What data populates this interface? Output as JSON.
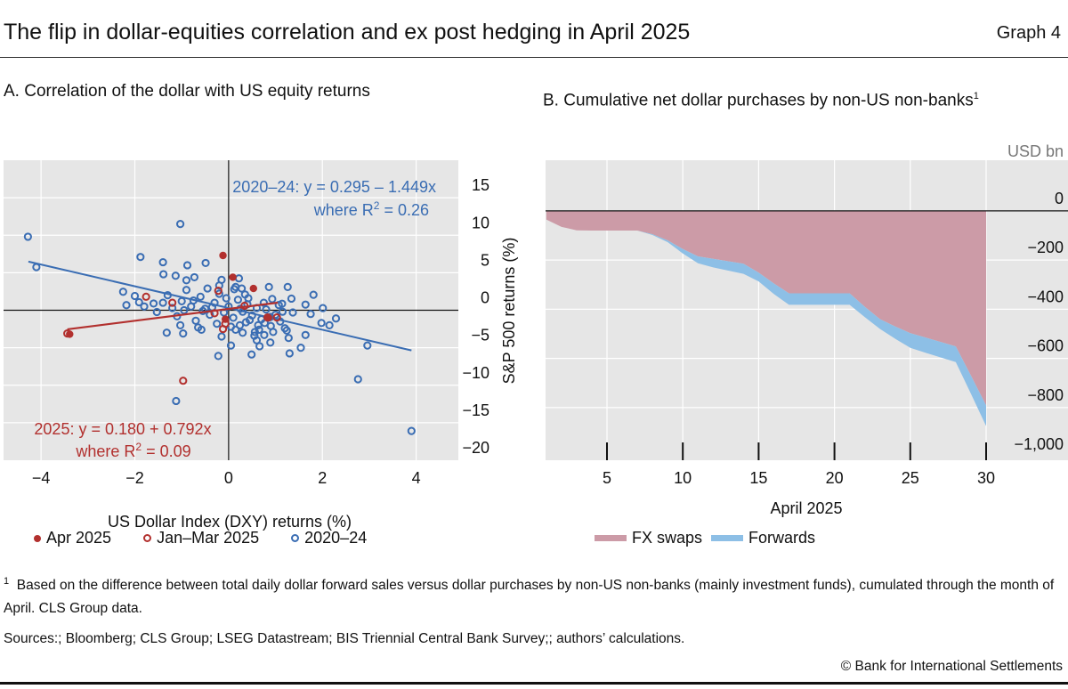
{
  "header": {
    "title": "The flip in dollar-equities correlation and ex post hedging in April 2025",
    "graph_number": "Graph 4"
  },
  "chart_data": [
    {
      "type": "scatter",
      "panel_title": "A. Correlation of the dollar with US equity returns",
      "xlabel": "US Dollar Index (DXY) returns (%)",
      "ylabel": "S&P 500 returns (%)",
      "xlim": [
        -4.8,
        4.9
      ],
      "ylim": [
        -20,
        20
      ],
      "x_ticks": [
        -4,
        -2,
        0,
        2,
        4
      ],
      "x_tick_labels": [
        "−4",
        "−2",
        "0",
        "2",
        "4"
      ],
      "y_ticks": [
        15,
        10,
        5,
        0,
        -5,
        -10,
        -15,
        -20
      ],
      "y_tick_labels": [
        "15",
        "10",
        "5",
        "0",
        "−5",
        "−10",
        "−15",
        "−20"
      ],
      "grid": true,
      "y_axis_side": "right",
      "legend_position": "bottom",
      "colors": {
        "red": "#b2302e",
        "blue": "#3a6db3",
        "background": "#e6e6e6"
      },
      "annotations": {
        "blue_eq": "2020–24: y = 0.295 – 1.449x",
        "blue_r2_prefix": "where R",
        "blue_r2_suffix": " = 0.26",
        "red_eq": "2025: y = 0.180 + 0.792x",
        "red_r2_prefix": "where R",
        "red_r2_suffix": " = 0.09",
        "sup": "2"
      },
      "fits": [
        {
          "series": "2020–24",
          "intercept": 0.295,
          "slope": -1.449,
          "x_range": [
            -4.27,
            3.9
          ]
        },
        {
          "series": "2025",
          "intercept": 0.18,
          "slope": 0.792,
          "x_range": [
            -3.44,
            1.05
          ]
        }
      ],
      "series": [
        {
          "name": "Apr 2025",
          "marker": "filled",
          "color": "#b2302e",
          "points": [
            [
              -0.12,
              7.3
            ],
            [
              0.09,
              4.4
            ],
            [
              0.53,
              2.9
            ],
            [
              -3.39,
              -3.2
            ],
            [
              -0.07,
              -1.2
            ],
            [
              0.85,
              -1.0
            ]
          ]
        },
        {
          "name": "Jan–Mar 2025",
          "marker": "hollow",
          "color": "#b2302e",
          "points": [
            [
              -3.44,
              -3.1
            ],
            [
              -0.97,
              -9.4
            ],
            [
              -0.22,
              2.6
            ],
            [
              -1.76,
              1.8
            ],
            [
              -1.2,
              1.0
            ],
            [
              -0.3,
              -0.4
            ],
            [
              -0.07,
              -1.8
            ],
            [
              -0.12,
              -2.5
            ],
            [
              0.34,
              0.6
            ],
            [
              0.83,
              -0.96
            ],
            [
              1.03,
              -0.96
            ]
          ]
        },
        {
          "name": "2020–24",
          "marker": "hollow",
          "color": "#3a6db3",
          "points": [
            [
              -4.28,
              9.8
            ],
            [
              -4.1,
              5.75
            ],
            [
              -1.03,
              11.5
            ],
            [
              -1.88,
              7.1
            ],
            [
              3.9,
              -16.1
            ],
            [
              2.76,
              -9.2
            ],
            [
              2.96,
              -4.7
            ],
            [
              -1.12,
              -12.1
            ],
            [
              -0.22,
              -6.1
            ],
            [
              -2.25,
              2.46
            ],
            [
              -2.18,
              0.68
            ],
            [
              -1.91,
              1.07
            ],
            [
              -1.53,
              -0.24
            ],
            [
              -1.32,
              -3.0
            ],
            [
              -1.4,
              6.4
            ],
            [
              -1.39,
              4.8
            ],
            [
              -0.88,
              6.0
            ],
            [
              -0.49,
              6.3
            ],
            [
              1.81,
              2.06
            ],
            [
              2.01,
              0.28
            ],
            [
              1.98,
              -1.7
            ],
            [
              2.15,
              -2.0
            ],
            [
              2.29,
              -1.1
            ],
            [
              1.64,
              0.75
            ],
            [
              1.54,
              -5.0
            ],
            [
              1.3,
              -5.75
            ],
            [
              1.26,
              3.1
            ],
            [
              1.34,
              1.55
            ],
            [
              1.24,
              -2.7
            ],
            [
              1.28,
              -3.7
            ],
            [
              1.64,
              -3.3
            ],
            [
              0.86,
              3.1
            ],
            [
              0.66,
              -4.8
            ],
            [
              0.49,
              -5.9
            ],
            [
              0.05,
              -4.7
            ],
            [
              -0.97,
              -3.1
            ],
            [
              -1.03,
              -2.0
            ],
            [
              -0.58,
              -2.6
            ],
            [
              -1.13,
              4.6
            ],
            [
              -0.9,
              4.0
            ],
            [
              -0.73,
              4.4
            ],
            [
              0.22,
              4.25
            ],
            [
              -0.15,
              4.05
            ],
            [
              0.89,
              -0.9
            ],
            [
              1.07,
              0.7
            ],
            [
              1.14,
              0.87
            ],
            [
              0.93,
              1.5
            ],
            [
              1.37,
              -0.3
            ],
            [
              1.75,
              -0.5
            ],
            [
              0.15,
              3.1
            ],
            [
              0.28,
              2.9
            ],
            [
              0.56,
              -2.9
            ],
            [
              0.76,
              -3.3
            ],
            [
              0.89,
              -4.3
            ],
            [
              0.24,
              -2.0
            ],
            [
              0.37,
              -1.6
            ],
            [
              0.63,
              -2.0
            ],
            [
              0.77,
              -1.7
            ],
            [
              -1.0,
              1.2
            ],
            [
              -0.8,
              0.5
            ],
            [
              -0.6,
              1.8
            ],
            [
              -0.5,
              0.2
            ],
            [
              -0.4,
              -0.6
            ],
            [
              -0.3,
              1.0
            ],
            [
              -0.2,
              2.2
            ],
            [
              -0.1,
              -0.3
            ],
            [
              0,
              0.5
            ],
            [
              0.1,
              -1.0
            ],
            [
              0.2,
              1.4
            ],
            [
              0.3,
              -0.2
            ],
            [
              0.4,
              0.8
            ],
            [
              0.5,
              -0.7
            ],
            [
              0.6,
              0.3
            ],
            [
              0.7,
              -1.2
            ],
            [
              0.8,
              0.1
            ],
            [
              0.9,
              -2.1
            ],
            [
              1.0,
              -0.6
            ],
            [
              1.1,
              -1.5
            ],
            [
              -1.2,
              0.3
            ],
            [
              -1.4,
              1.0
            ],
            [
              -1.1,
              -0.8
            ],
            [
              -0.9,
              2.7
            ],
            [
              -0.7,
              -1.4
            ],
            [
              -0.45,
              2.9
            ],
            [
              -0.25,
              -1.8
            ],
            [
              -0.05,
              1.6
            ],
            [
              0.15,
              -2.6
            ],
            [
              0.35,
              2.1
            ],
            [
              0.55,
              -3.4
            ],
            [
              0.75,
              1.0
            ],
            [
              0.95,
              -2.9
            ],
            [
              1.15,
              -0.2
            ],
            [
              -1.6,
              0.9
            ],
            [
              -1.8,
              0.5
            ],
            [
              -2.0,
              1.9
            ],
            [
              -1.3,
              2.0
            ],
            [
              -0.65,
              -2.3
            ],
            [
              -0.15,
              -3.5
            ],
            [
              0.05,
              -2.2
            ],
            [
              0.25,
              0.2
            ],
            [
              0.45,
              -1.3
            ],
            [
              0.65,
              -2.6
            ],
            [
              0.85,
              -1.0
            ],
            [
              1.2,
              -2.4
            ],
            [
              -0.35,
              0.4
            ],
            [
              -0.55,
              -0.1
            ],
            [
              -0.75,
              1.3
            ],
            [
              -0.95,
              0.0
            ],
            [
              0.12,
              2.8
            ],
            [
              0.42,
              1.6
            ],
            [
              -0.2,
              3.3
            ],
            [
              0.6,
              -4.0
            ],
            [
              0.3,
              -3.0
            ]
          ]
        }
      ]
    },
    {
      "type": "area",
      "stacked": true,
      "panel_title": "B. Cumulative net dollar purchases by non-US non-banks",
      "panel_title_sup": "1",
      "unit": "USD bn",
      "xlabel": "April 2025",
      "xlim": [
        1,
        30
      ],
      "ylim": [
        -1014,
        206
      ],
      "x_ticks": [
        5,
        10,
        15,
        20,
        25,
        30
      ],
      "x_tick_labels": [
        "5",
        "10",
        "15",
        "20",
        "25",
        "30"
      ],
      "y_ticks": [
        0,
        -200,
        -400,
        -600,
        -800,
        -1000
      ],
      "y_tick_labels": [
        "0",
        "−200",
        "−400",
        "−600",
        "−800",
        "−1,000"
      ],
      "grid": true,
      "y_axis_side": "right",
      "legend_position": "bottom",
      "x": [
        1,
        2,
        3,
        4,
        5,
        6,
        7,
        8,
        9,
        10,
        11,
        12,
        13,
        14,
        15,
        16,
        17,
        18,
        19,
        20,
        21,
        22,
        23,
        24,
        25,
        26,
        27,
        28,
        29,
        30
      ],
      "series": [
        {
          "name": "FX swaps",
          "color": "#cc9ba7",
          "values": [
            -35,
            -65,
            -79,
            -80,
            -80,
            -80,
            -80,
            -95,
            -120,
            -155,
            -185,
            -195,
            -205,
            -215,
            -251,
            -295,
            -335,
            -335,
            -335,
            -335,
            -335,
            -390,
            -440,
            -470,
            -497,
            -515,
            -533,
            -551,
            -670,
            -791
          ]
        },
        {
          "name": "Forwards",
          "color": "#8dbfe6",
          "values": [
            0,
            0,
            0,
            0,
            0,
            0,
            0,
            -3,
            -7,
            -18,
            -28,
            -35,
            -38,
            -41,
            -36,
            -43,
            -47,
            -47,
            -47,
            -47,
            -47,
            -42,
            -40,
            -50,
            -60,
            -62,
            -63,
            -64,
            -74,
            -84
          ]
        }
      ]
    }
  ],
  "legend_a": [
    "Apr 2025",
    "Jan–Mar 2025",
    "2020–24"
  ],
  "legend_b": [
    "FX swaps",
    "Forwards"
  ],
  "footnote": {
    "marker": "1",
    "text": "Based on the difference between total daily dollar forward sales versus dollar purchases by non-US non-banks (mainly investment funds), cumulated through the month of April. CLS Group data."
  },
  "sources": "Sources:; Bloomberg; CLS Group; LSEG Datastream; BIS Triennial Central Bank Survey;; authors’ calculations.",
  "copyright": "© Bank for International Settlements"
}
